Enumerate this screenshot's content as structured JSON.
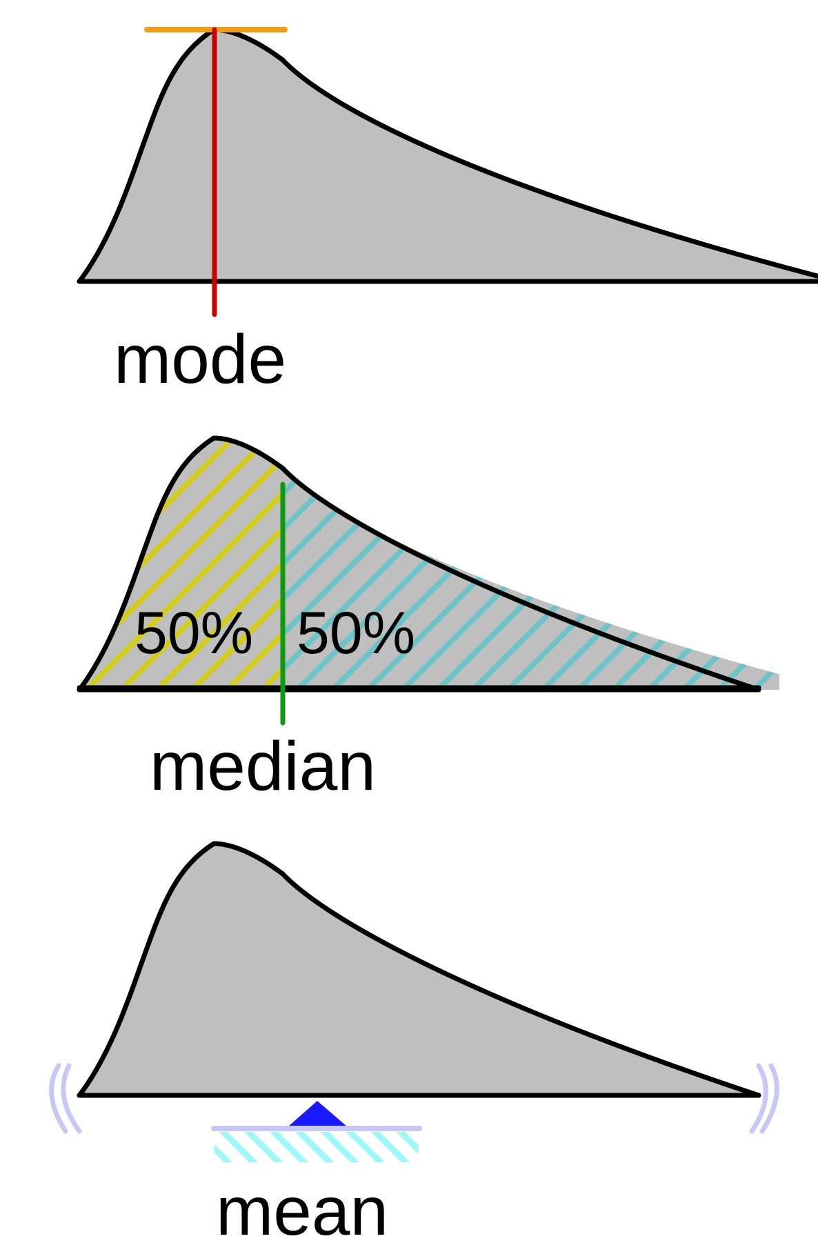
{
  "panels": {
    "mode": {
      "label": "mode"
    },
    "median": {
      "label": "median",
      "left_pct": "50%",
      "right_pct": "50%"
    },
    "mean": {
      "label": "mean"
    }
  },
  "colors": {
    "fill": "#bfbfbf",
    "outline": "#000000",
    "mode_line": "#cc0000",
    "mode_cap": "#f39c12",
    "median_line": "#119911",
    "hatch_left": "#d4cc1a",
    "hatch_right": "#6cc4c8",
    "fulcrum": "#1a1aff",
    "beam": "#c8c8f8",
    "base_hatch": "#9ff8f8",
    "wobble": "#c8c8f8"
  }
}
